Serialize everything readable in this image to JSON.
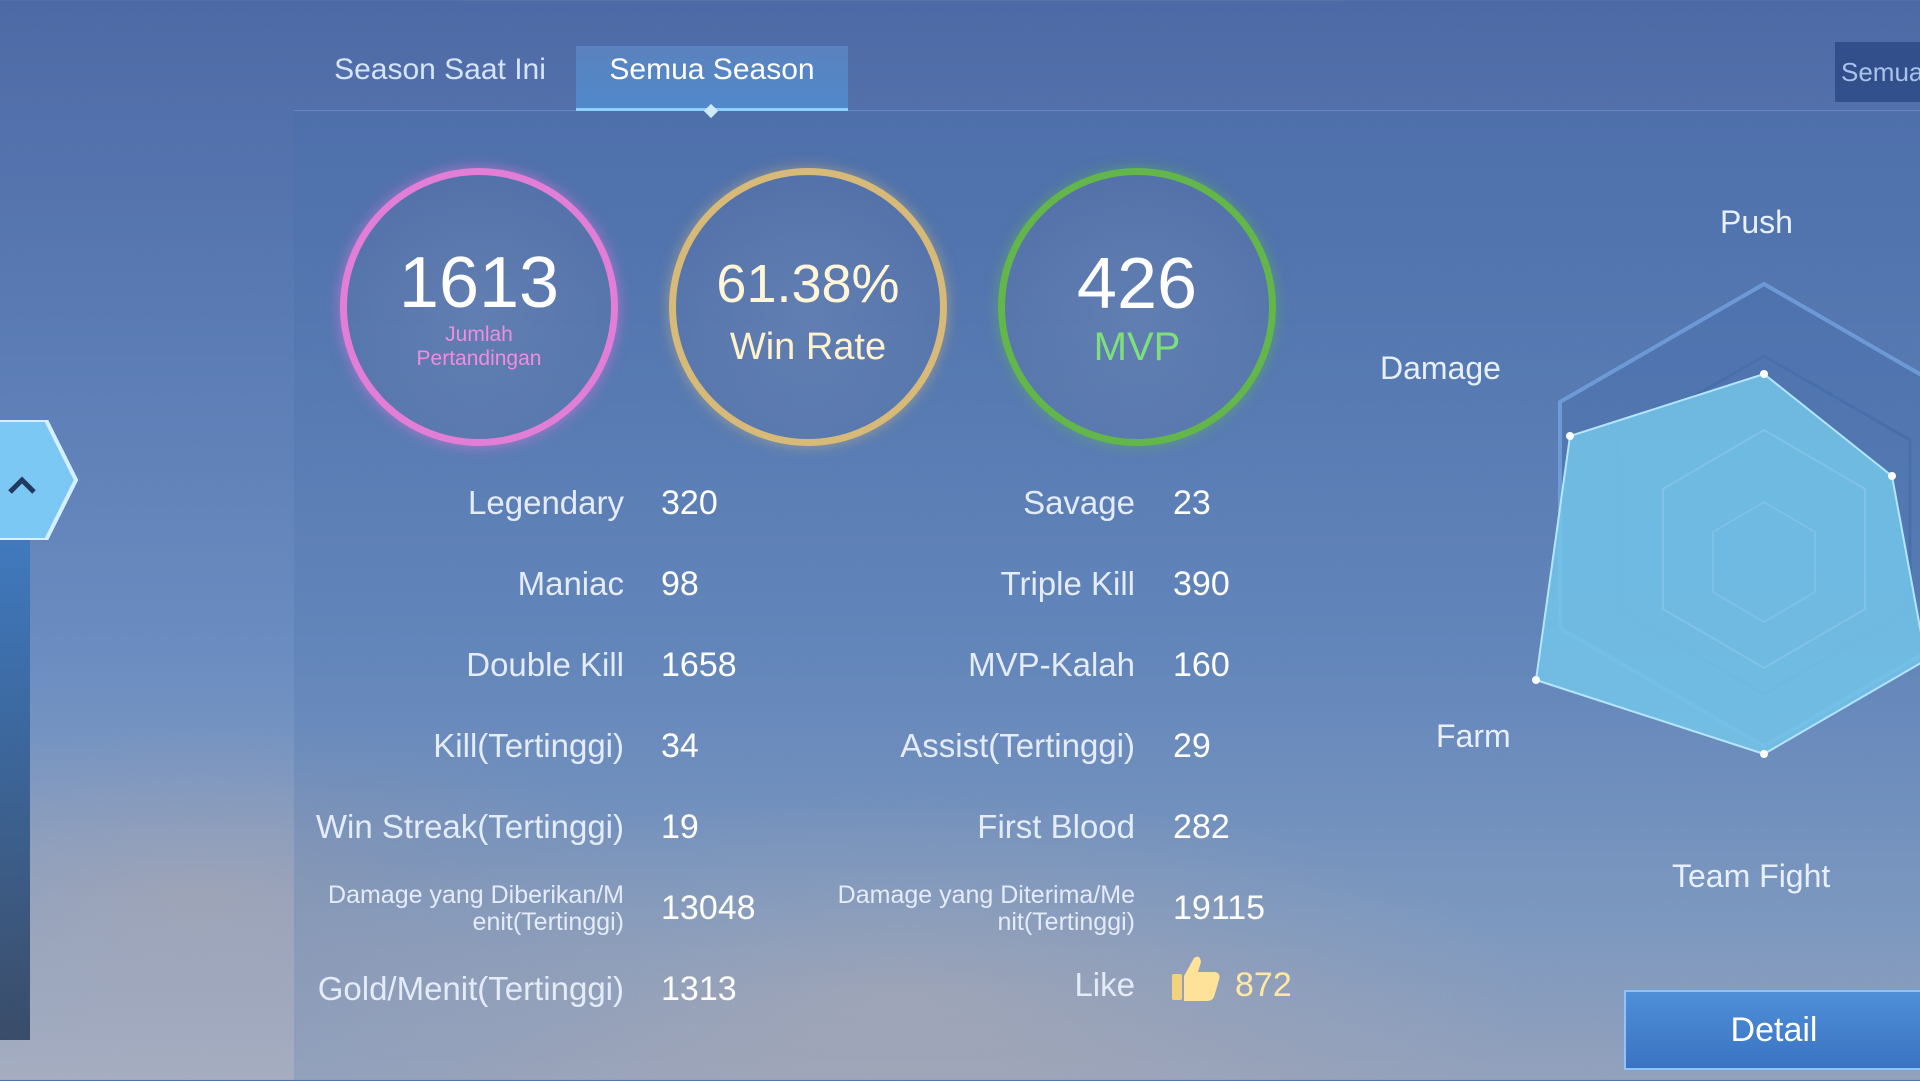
{
  "tabs": {
    "current_season": "Season Saat Ini",
    "all_season": "Semua Season",
    "right_tab": "Semua"
  },
  "summary": {
    "matches": {
      "value": "1613",
      "label": "Jumlah Pertandingan",
      "color": "#e37ed6"
    },
    "win_rate": {
      "value": "61.38%",
      "label": "Win Rate",
      "color": "#d7b978"
    },
    "mvp": {
      "value": "426",
      "label": "MVP",
      "color": "#63b64a"
    }
  },
  "stats": {
    "legendary": {
      "label": "Legendary",
      "value": "320"
    },
    "savage": {
      "label": "Savage",
      "value": "23"
    },
    "maniac": {
      "label": "Maniac",
      "value": "98"
    },
    "triple_kill": {
      "label": "Triple Kill",
      "value": "390"
    },
    "double_kill": {
      "label": "Double Kill",
      "value": "1658"
    },
    "mvp_lose": {
      "label": "MVP-Kalah",
      "value": "160"
    },
    "kill_highest": {
      "label": "Kill(Tertinggi)",
      "value": "34"
    },
    "assist_highest": {
      "label": "Assist(Tertinggi)",
      "value": "29"
    },
    "win_streak": {
      "label": "Win Streak(Tertinggi)",
      "value": "19"
    },
    "first_blood": {
      "label": "First Blood",
      "value": "282"
    },
    "damage_dealt_line1": "Damage yang Diberikan/M",
    "damage_dealt_line2": "enit(Tertinggi)",
    "damage_dealt_value": "13048",
    "damage_taken_line1": "Damage yang Diterima/Me",
    "damage_taken_line2": "nit(Tertinggi)",
    "damage_taken_value": "19115",
    "gold_per_min": {
      "label": "Gold/Menit(Tertinggi)",
      "value": "1313"
    },
    "like": {
      "label": "Like",
      "value": "872",
      "icon": "thumbs-up-icon"
    }
  },
  "radar": {
    "labels": {
      "push": "Push",
      "damage": "Damage",
      "farm": "Farm",
      "team_fight": "Team Fight"
    },
    "fill_color": "#74c6ea"
  },
  "detail_button": "Detail",
  "side_button_icon": "chevron-up-icon"
}
